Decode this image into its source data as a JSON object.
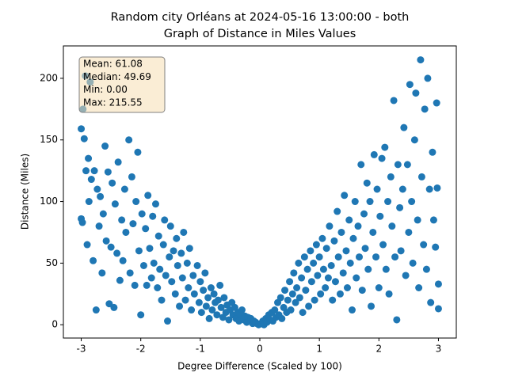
{
  "chart_data": {
    "type": "scatter",
    "title": "Random city Orléans at 2024-05-16 13:00:00  - both",
    "subtitle": "Graph of Distance in Miles Values",
    "xlabel": "Degree Difference (Scaled by 100)",
    "ylabel": "Distance (Miles)",
    "stats": [
      "Mean: 61.08",
      "Median: 49.69",
      "Min: 0.00",
      "Max: 215.55"
    ],
    "color": "#1f77b4",
    "xlim": [
      -3.3,
      3.3
    ],
    "ylim": [
      -10.8,
      226.3
    ],
    "xticks": [
      -3,
      -2,
      -1,
      0,
      1,
      2,
      3
    ],
    "yticks": [
      0,
      50,
      100,
      150,
      200
    ],
    "x": [
      -3.0,
      -3.0,
      -2.98,
      -2.97,
      -2.95,
      -2.93,
      -2.92,
      -2.9,
      -2.88,
      -2.87,
      -2.85,
      -2.83,
      -2.8,
      -2.78,
      -2.75,
      -2.73,
      -2.7,
      -2.68,
      -2.65,
      -2.63,
      -2.6,
      -2.58,
      -2.55,
      -2.53,
      -2.5,
      -2.48,
      -2.45,
      -2.43,
      -2.4,
      -2.38,
      -2.35,
      -2.32,
      -2.3,
      -2.27,
      -2.25,
      -2.2,
      -2.18,
      -2.15,
      -2.13,
      -2.1,
      -2.08,
      -2.05,
      -2.03,
      -2.0,
      -1.98,
      -1.95,
      -1.92,
      -1.9,
      -1.88,
      -1.85,
      -1.82,
      -1.8,
      -1.78,
      -1.75,
      -1.72,
      -1.7,
      -1.68,
      -1.65,
      -1.62,
      -1.6,
      -1.58,
      -1.55,
      -1.52,
      -1.5,
      -1.48,
      -1.45,
      -1.42,
      -1.4,
      -1.38,
      -1.35,
      -1.32,
      -1.3,
      -1.28,
      -1.25,
      -1.22,
      -1.2,
      -1.18,
      -1.15,
      -1.12,
      -1.1,
      -1.05,
      -1.02,
      -1.0,
      -0.98,
      -0.95,
      -0.92,
      -0.9,
      -0.87,
      -0.85,
      -0.82,
      -0.8,
      -0.77,
      -0.75,
      -0.72,
      -0.7,
      -0.67,
      -0.65,
      -0.62,
      -0.6,
      -0.57,
      -0.55,
      -0.52,
      -0.5,
      -0.47,
      -0.45,
      -0.42,
      -0.4,
      -0.37,
      -0.35,
      -0.32,
      -0.3,
      -0.27,
      -0.25,
      -0.22,
      -0.2,
      -0.17,
      -0.15,
      -0.12,
      -0.1,
      -0.07,
      -0.05,
      -0.02,
      0.02,
      0.05,
      0.07,
      0.1,
      0.12,
      0.15,
      0.17,
      0.2,
      0.22,
      0.25,
      0.27,
      0.3,
      0.32,
      0.35,
      0.37,
      0.4,
      0.42,
      0.45,
      0.47,
      0.5,
      0.52,
      0.55,
      0.57,
      0.6,
      0.62,
      0.65,
      0.67,
      0.7,
      0.72,
      0.75,
      0.77,
      0.8,
      0.82,
      0.85,
      0.87,
      0.9,
      0.92,
      0.95,
      0.97,
      1.0,
      1.02,
      1.05,
      1.07,
      1.1,
      1.12,
      1.15,
      1.17,
      1.2,
      1.22,
      1.25,
      1.27,
      1.3,
      1.32,
      1.35,
      1.37,
      1.4,
      1.42,
      1.45,
      1.47,
      1.5,
      1.52,
      1.55,
      1.57,
      1.6,
      1.62,
      1.65,
      1.67,
      1.7,
      1.72,
      1.75,
      1.77,
      1.8,
      1.82,
      1.85,
      1.87,
      1.9,
      1.92,
      1.95,
      1.97,
      2.0,
      2.02,
      2.05,
      2.07,
      2.1,
      2.12,
      2.15,
      2.17,
      2.2,
      2.22,
      2.25,
      2.27,
      2.3,
      2.32,
      2.35,
      2.37,
      2.4,
      2.42,
      2.45,
      2.48,
      2.5,
      2.52,
      2.55,
      2.57,
      2.6,
      2.62,
      2.65,
      2.67,
      2.7,
      2.72,
      2.75,
      2.77,
      2.8,
      2.82,
      2.85,
      2.87,
      2.9,
      2.92,
      2.95,
      2.97,
      3.0,
      3.0,
      2.98
    ],
    "values": [
      159,
      86,
      83,
      175,
      151,
      202,
      125,
      65,
      135,
      100,
      197,
      118,
      52,
      125,
      12,
      110,
      80,
      104,
      42,
      90,
      145,
      68,
      124,
      17,
      63,
      115,
      14,
      98,
      58,
      132,
      36,
      85,
      52,
      110,
      75,
      150,
      42,
      120,
      82,
      32,
      100,
      140,
      60,
      8,
      90,
      48,
      78,
      32,
      105,
      62,
      38,
      88,
      50,
      98,
      30,
      72,
      45,
      20,
      65,
      85,
      40,
      3,
      55,
      80,
      35,
      60,
      25,
      70,
      48,
      15,
      58,
      38,
      75,
      20,
      50,
      30,
      62,
      12,
      40,
      25,
      48,
      18,
      35,
      10,
      28,
      42,
      15,
      22,
      5,
      30,
      12,
      25,
      18,
      8,
      20,
      32,
      14,
      6,
      22,
      10,
      16,
      4,
      12,
      18,
      8,
      14,
      5,
      10,
      3,
      8,
      12,
      4,
      7,
      2,
      6,
      3,
      5,
      1,
      3,
      2,
      1,
      0,
      1,
      3,
      0,
      5,
      2,
      8,
      4,
      10,
      3,
      12,
      6,
      18,
      8,
      22,
      5,
      14,
      28,
      10,
      20,
      35,
      12,
      25,
      42,
      18,
      30,
      50,
      22,
      38,
      10,
      55,
      28,
      45,
      15,
      60,
      35,
      50,
      20,
      65,
      40,
      55,
      25,
      70,
      45,
      30,
      62,
      38,
      80,
      48,
      20,
      68,
      35,
      92,
      55,
      25,
      75,
      42,
      105,
      60,
      30,
      85,
      50,
      12,
      70,
      100,
      38,
      80,
      55,
      130,
      28,
      90,
      62,
      115,
      45,
      100,
      15,
      75,
      138,
      55,
      110,
      30,
      88,
      135,
      65,
      144,
      45,
      100,
      25,
      120,
      80,
      182,
      55,
      4,
      130,
      95,
      60,
      110,
      160,
      40,
      130,
      75,
      195,
      100,
      50,
      150,
      188,
      85,
      30,
      215,
      120,
      65,
      175,
      45,
      200,
      110,
      18,
      140,
      85,
      63,
      180,
      33,
      13,
      111
    ]
  }
}
